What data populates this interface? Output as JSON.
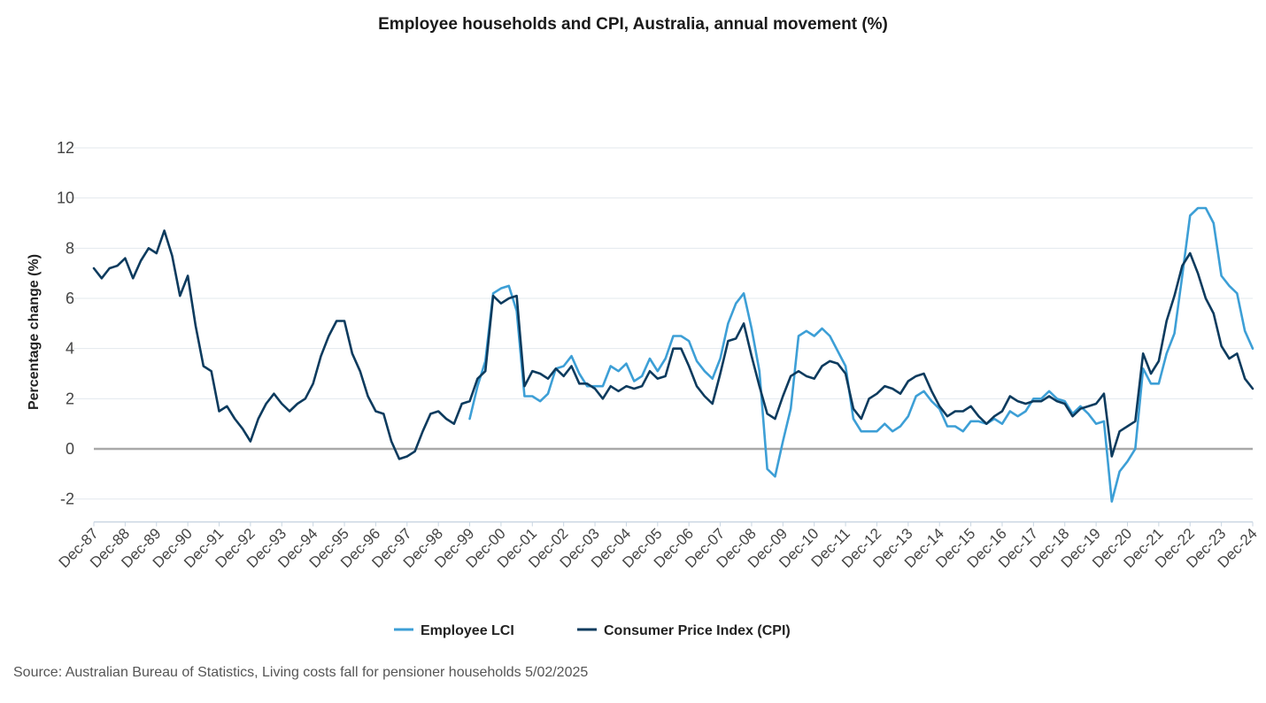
{
  "chart_data": {
    "type": "line",
    "title": "Employee households and CPI, Australia, annual movement (%)",
    "ylabel": "Percentage change (%)",
    "xlabel": "",
    "ylim": [
      -2.7,
      12
    ],
    "yticks": [
      -2,
      0,
      2,
      4,
      6,
      8,
      10,
      12
    ],
    "x_ticks": [
      "Dec-87",
      "Dec-88",
      "Dec-89",
      "Dec-90",
      "Dec-91",
      "Dec-92",
      "Dec-93",
      "Dec-94",
      "Dec-95",
      "Dec-96",
      "Dec-97",
      "Dec-98",
      "Dec-99",
      "Dec-00",
      "Dec-01",
      "Dec-02",
      "Dec-03",
      "Dec-04",
      "Dec-05",
      "Dec-06",
      "Dec-07",
      "Dec-08",
      "Dec-09",
      "Dec-10",
      "Dec-11",
      "Dec-12",
      "Dec-13",
      "Dec-14",
      "Dec-15",
      "Dec-16",
      "Dec-17",
      "Dec-18",
      "Dec-19",
      "Dec-20",
      "Dec-21",
      "Dec-22",
      "Dec-23",
      "Dec-24"
    ],
    "x_range": [
      "Dec-87",
      "Dec-24"
    ],
    "frequency": "quarterly",
    "grid": true,
    "legend_position": "bottom-center",
    "series": [
      {
        "name": "Employee LCI",
        "color": "#3d9fd6",
        "start": "Dec-99",
        "values": [
          1.2,
          2.5,
          3.5,
          6.2,
          6.4,
          6.5,
          5.5,
          2.1,
          2.1,
          1.9,
          2.2,
          3.2,
          3.3,
          3.7,
          3.0,
          2.5,
          2.5,
          2.5,
          3.3,
          3.1,
          3.4,
          2.7,
          2.9,
          3.6,
          3.1,
          3.6,
          4.5,
          4.5,
          4.3,
          3.5,
          3.1,
          2.8,
          3.6,
          5.0,
          5.8,
          6.2,
          4.8,
          3.1,
          -0.8,
          -1.1,
          0.3,
          1.6,
          4.5,
          4.7,
          4.5,
          4.8,
          4.5,
          3.9,
          3.3,
          1.2,
          0.7,
          0.7,
          0.7,
          1.0,
          0.7,
          0.9,
          1.3,
          2.1,
          2.3,
          1.9,
          1.6,
          0.9,
          0.9,
          0.7,
          1.1,
          1.1,
          1.0,
          1.2,
          1.0,
          1.5,
          1.3,
          1.5,
          2.0,
          2.0,
          2.3,
          2.0,
          1.9,
          1.4,
          1.7,
          1.4,
          1.0,
          1.1,
          -2.1,
          -0.9,
          -0.5,
          0.0,
          3.2,
          2.6,
          2.6,
          3.8,
          4.6,
          6.9,
          9.3,
          9.6,
          9.6,
          9.0,
          6.9,
          6.5,
          6.2,
          4.7,
          4.0
        ]
      },
      {
        "name": "Consumer Price Index (CPI)",
        "color": "#0d3b5e",
        "start": "Dec-87",
        "values": [
          7.2,
          6.8,
          7.2,
          7.3,
          7.6,
          6.8,
          7.5,
          8.0,
          7.8,
          8.7,
          7.7,
          6.1,
          6.9,
          4.9,
          3.3,
          3.1,
          1.5,
          1.7,
          1.2,
          0.8,
          0.3,
          1.2,
          1.8,
          2.2,
          1.8,
          1.5,
          1.8,
          2.0,
          2.6,
          3.7,
          4.5,
          5.1,
          5.1,
          3.8,
          3.1,
          2.1,
          1.5,
          1.4,
          0.3,
          -0.4,
          -0.3,
          -0.1,
          0.7,
          1.4,
          1.5,
          1.2,
          1.0,
          1.8,
          1.9,
          2.8,
          3.1,
          6.1,
          5.8,
          6.0,
          6.1,
          2.5,
          3.1,
          3.0,
          2.8,
          3.2,
          2.9,
          3.3,
          2.6,
          2.6,
          2.4,
          2.0,
          2.5,
          2.3,
          2.5,
          2.4,
          2.5,
          3.1,
          2.8,
          2.9,
          4.0,
          4.0,
          3.3,
          2.5,
          2.1,
          1.8,
          3.0,
          4.3,
          4.4,
          5.0,
          3.7,
          2.5,
          1.4,
          1.2,
          2.1,
          2.9,
          3.1,
          2.9,
          2.8,
          3.3,
          3.5,
          3.4,
          3.0,
          1.6,
          1.2,
          2.0,
          2.2,
          2.5,
          2.4,
          2.2,
          2.7,
          2.9,
          3.0,
          2.3,
          1.7,
          1.3,
          1.5,
          1.5,
          1.7,
          1.3,
          1.0,
          1.3,
          1.5,
          2.1,
          1.9,
          1.8,
          1.9,
          1.9,
          2.1,
          1.9,
          1.8,
          1.3,
          1.6,
          1.7,
          1.8,
          2.2,
          -0.3,
          0.7,
          0.9,
          1.1,
          3.8,
          3.0,
          3.5,
          5.1,
          6.1,
          7.3,
          7.8,
          7.0,
          6.0,
          5.4,
          4.1,
          3.6,
          3.8,
          2.8,
          2.4
        ]
      }
    ]
  },
  "source_note": "Source: Australian Bureau of Statistics, Living costs fall for pensioner households 5/02/2025"
}
